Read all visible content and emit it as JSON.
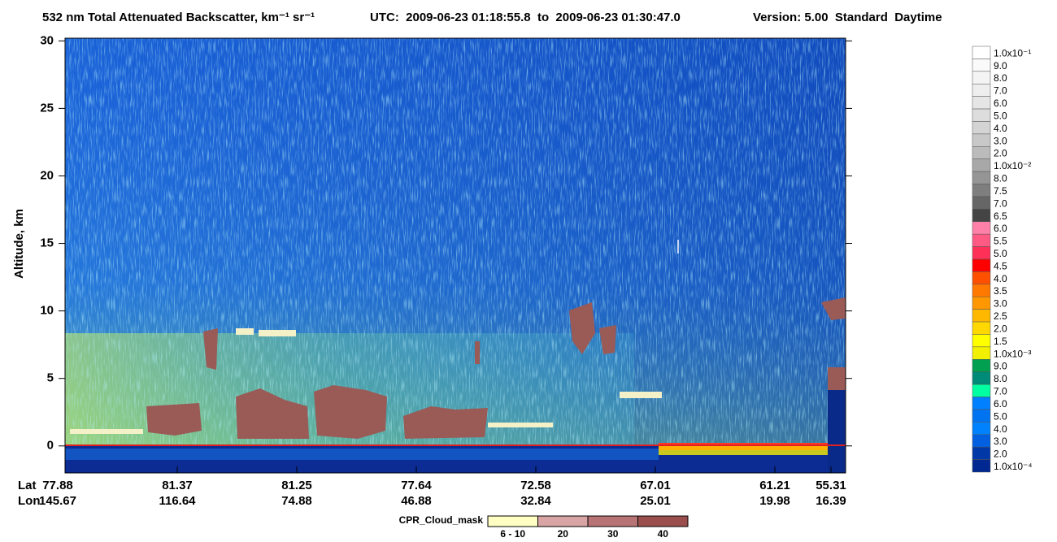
{
  "chart_data": {
    "type": "heatmap",
    "title": "532 nm Total Attenuated Backscatter, km⁻¹ sr⁻¹",
    "time_range": "UTC:  2009-06-23 01:18:55.8  to  2009-06-23 01:30:47.0",
    "version": "Version: 5.00  Standard  Daytime",
    "y_label": "Altitude, km",
    "ylim": [
      -2,
      30.2
    ],
    "yticks": [
      0,
      5,
      10,
      15,
      20,
      25,
      30
    ],
    "x_row_labels": [
      "Lat",
      "Lon"
    ],
    "lat": [
      "77.88",
      "81.37",
      "81.25",
      "77.64",
      "72.58",
      "67.01",
      "61.21",
      "55.31"
    ],
    "lon": [
      "145.67",
      "116.64",
      "74.88",
      "46.88",
      "32.84",
      "25.01",
      "19.98",
      "16.39"
    ],
    "colorbar_labels": [
      "1.0x10⁻¹",
      "9.0",
      "8.0",
      "7.0",
      "6.0",
      "5.0",
      "4.0",
      "3.0",
      "2.0",
      "1.0x10⁻²",
      "8.0",
      "7.5",
      "7.0",
      "6.5",
      "6.0",
      "5.5",
      "5.0",
      "4.5",
      "4.0",
      "3.5",
      "3.0",
      "2.5",
      "2.0",
      "1.5",
      "1.0x10⁻³",
      "9.0",
      "8.0",
      "7.0",
      "6.0",
      "5.0",
      "4.0",
      "3.0",
      "2.0",
      "1.0x10⁻⁴"
    ],
    "colorbar_colors": [
      "#ffffff",
      "#fafafa",
      "#f4f4f4",
      "#eeeeee",
      "#e6e6e6",
      "#dddddd",
      "#d4d4d4",
      "#c8c8c8",
      "#bbbbbb",
      "#a8a8a8",
      "#959595",
      "#7e7e7e",
      "#666666",
      "#444444",
      "#ff80a8",
      "#ff5a84",
      "#ff3058",
      "#ff0000",
      "#ff5000",
      "#ff7800",
      "#ff9800",
      "#ffb800",
      "#ffd800",
      "#ffff00",
      "#f0f000",
      "#00a050",
      "#008a78",
      "#00ffa0",
      "#0080ff",
      "#0074f0",
      "#0082ff",
      "#0060e0",
      "#0038a8",
      "#002890"
    ],
    "cloud_mask_title": "CPR_Cloud_mask",
    "cloud_mask_labels": [
      "6 - 10",
      "20",
      "30",
      "40"
    ],
    "cloud_mask_colors": [
      "#ffffc4",
      "#d9a4a4",
      "#b87474",
      "#9a4e4e"
    ]
  }
}
